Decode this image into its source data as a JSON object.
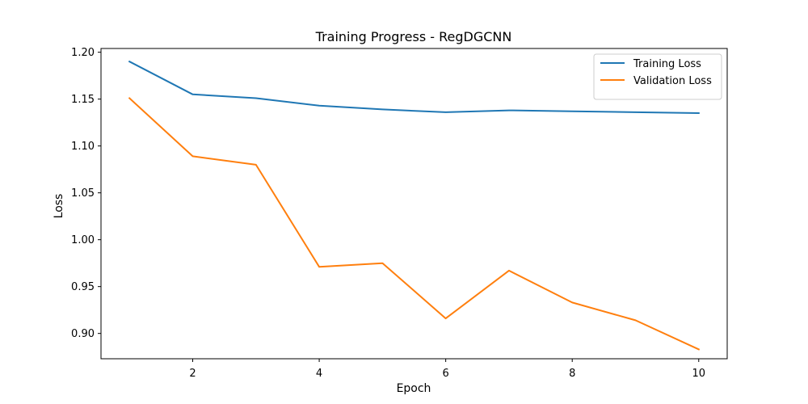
{
  "chart_data": {
    "type": "line",
    "title": "Training Progress - RegDGCNN",
    "xlabel": "Epoch",
    "ylabel": "Loss",
    "x": [
      1,
      2,
      3,
      4,
      5,
      6,
      7,
      8,
      9,
      10
    ],
    "xlim": [
      0.55,
      10.45
    ],
    "ylim": [
      0.873,
      1.204
    ],
    "xticks": [
      2,
      4,
      6,
      8,
      10
    ],
    "yticks": [
      0.9,
      0.95,
      1.0,
      1.05,
      1.1,
      1.15,
      1.2
    ],
    "xtick_labels": [
      "2",
      "4",
      "6",
      "8",
      "10"
    ],
    "ytick_labels": [
      "0.90",
      "0.95",
      "1.00",
      "1.05",
      "1.10",
      "1.15",
      "1.20"
    ],
    "grid": false,
    "legend_position": "top-right",
    "series": [
      {
        "name": "Training Loss",
        "color": "#1f77b4",
        "values": [
          1.19,
          1.155,
          1.151,
          1.143,
          1.139,
          1.136,
          1.138,
          1.137,
          1.136,
          1.135
        ]
      },
      {
        "name": "Validation Loss",
        "color": "#ff7f0e",
        "values": [
          1.151,
          1.089,
          1.08,
          0.971,
          0.975,
          0.916,
          0.967,
          0.933,
          0.914,
          0.883
        ]
      }
    ]
  }
}
